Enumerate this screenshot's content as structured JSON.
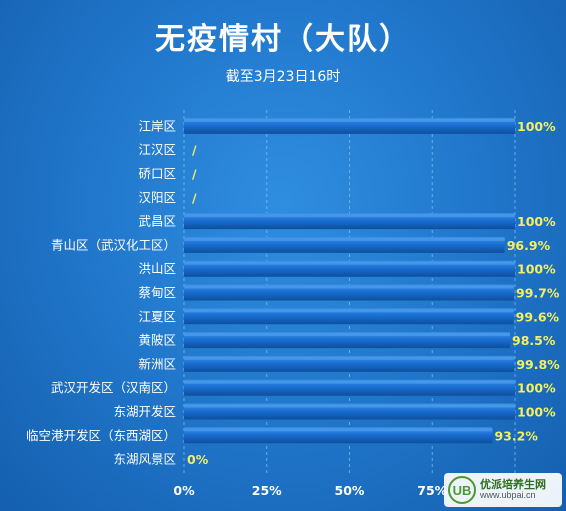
{
  "chart_data": {
    "type": "bar",
    "orientation": "horizontal",
    "title": "无疫情村（大队）",
    "subtitle": "截至3月23日16时",
    "categories": [
      "江岸区",
      "江汉区",
      "硚口区",
      "汉阳区",
      "武昌区",
      "青山区（武汉化工区）",
      "洪山区",
      "蔡甸区",
      "江夏区",
      "黄陂区",
      "新洲区",
      "武汉开发区（汉南区）",
      "东湖开发区",
      "临空港开发区（东西湖区）",
      "东湖风景区"
    ],
    "values": [
      100,
      null,
      null,
      null,
      100,
      96.9,
      100,
      99.7,
      99.6,
      98.5,
      99.8,
      100,
      100,
      93.2,
      0
    ],
    "value_labels": [
      "100%",
      "/",
      "/",
      "/",
      "100%",
      "96.9%",
      "100%",
      "99.7%",
      "99.6%",
      "98.5%",
      "99.8%",
      "100%",
      "100%",
      "93.2%",
      "0%"
    ],
    "xlim": [
      0,
      100
    ],
    "xticks": [
      "0%",
      "25%",
      "50%",
      "75%"
    ],
    "grid": true,
    "colors": {
      "bar": "#1566c8",
      "bar_highlight": "#3b8fe6",
      "value_label": "#f4f060",
      "grid": "#8cc2f0"
    }
  },
  "watermark": {
    "name": "优派培养生网",
    "url": "www.ubpai.cn",
    "mark": "UB"
  }
}
